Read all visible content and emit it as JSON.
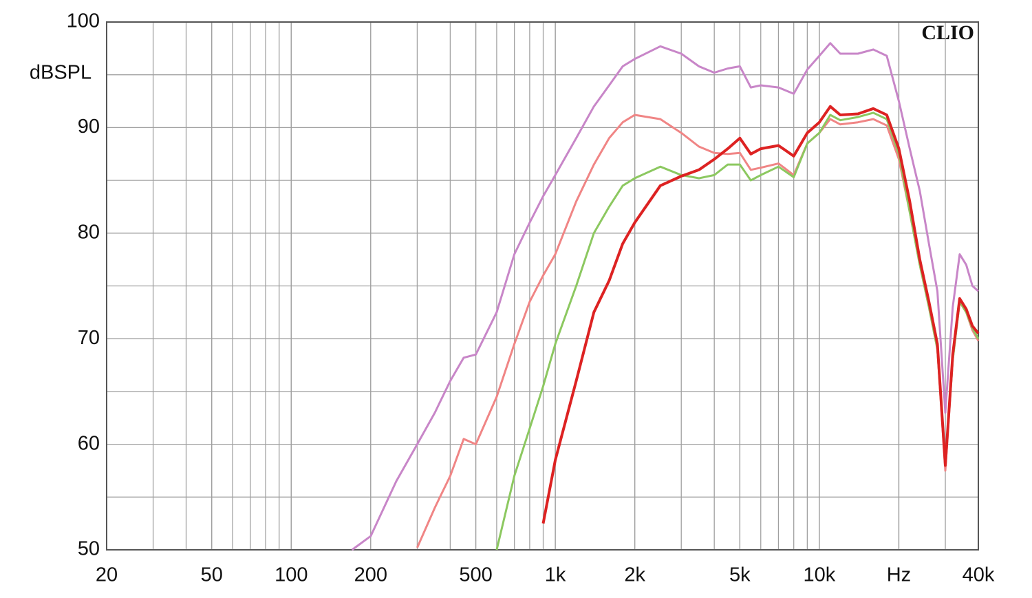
{
  "chart_data": {
    "type": "line",
    "ylabel": "dBSPL",
    "annotation": "CLIO",
    "log_x": true,
    "grid": true,
    "x": [
      170,
      200,
      250,
      300,
      350,
      400,
      450,
      500,
      600,
      700,
      800,
      900,
      1000,
      1200,
      1400,
      1600,
      1800,
      2000,
      2500,
      3000,
      3500,
      4000,
      4500,
      5000,
      5500,
      6000,
      7000,
      8000,
      9000,
      10000,
      11000,
      12000,
      14000,
      16000,
      18000,
      20000,
      22000,
      24000,
      26000,
      28000,
      30000,
      32000,
      34000,
      36000,
      38000,
      40000
    ],
    "series": [
      {
        "color": "#c886c8",
        "values": [
          50.0,
          51.3,
          56.5,
          60.0,
          63,
          66,
          68.2,
          68.5,
          72.5,
          78,
          81,
          83.5,
          85.5,
          89,
          92,
          94,
          95.8,
          96.5,
          97.7,
          97,
          95.8,
          95.2,
          95.6,
          95.8,
          93.8,
          94,
          93.8,
          93.2,
          95.5,
          96.8,
          98,
          97,
          97,
          97.4,
          96.8,
          92.5,
          88,
          84,
          79,
          74.5,
          63,
          73,
          78,
          77,
          75,
          74.5
        ]
      },
      {
        "color": "#f08585",
        "values": [
          null,
          null,
          null,
          50.2,
          54,
          57,
          60.5,
          60,
          64.5,
          69.5,
          73.5,
          76,
          78,
          83,
          86.5,
          89,
          90.5,
          91.2,
          90.8,
          89.5,
          88.2,
          87.6,
          87.5,
          87.6,
          86,
          86.2,
          86.6,
          85.5,
          88.5,
          89.5,
          90.8,
          90.3,
          90.5,
          90.8,
          90.2,
          87,
          82,
          77,
          73,
          69,
          57.5,
          68,
          73.5,
          72.5,
          70.8,
          69.8
        ]
      },
      {
        "color": "#8cc860",
        "values": [
          null,
          null,
          null,
          null,
          null,
          null,
          null,
          null,
          50,
          57,
          61.5,
          65.5,
          69.5,
          75,
          80,
          82.5,
          84.5,
          85.2,
          86.3,
          85.5,
          85.2,
          85.5,
          86.5,
          86.5,
          85,
          85.5,
          86.3,
          85.3,
          88.5,
          89.5,
          91.2,
          90.7,
          91,
          91.4,
          90.8,
          87.5,
          82,
          77,
          73,
          69,
          58,
          68,
          73.5,
          72.5,
          71,
          70
        ]
      },
      {
        "color": "#dd2222",
        "values": [
          null,
          null,
          null,
          null,
          null,
          null,
          null,
          null,
          null,
          null,
          null,
          52.5,
          58.5,
          66,
          72.5,
          75.5,
          79,
          81,
          84.5,
          85.4,
          86,
          87,
          88,
          89,
          87.5,
          88,
          88.3,
          87.3,
          89.5,
          90.5,
          92,
          91.2,
          91.3,
          91.8,
          91.2,
          88,
          83,
          77.5,
          73.5,
          69.5,
          58,
          68.5,
          73.8,
          72.8,
          71.2,
          70.5
        ]
      }
    ],
    "xlim": [
      20,
      40000
    ],
    "xticks": [
      20,
      50,
      100,
      200,
      500,
      {
        "value": 1000,
        "label": "1k"
      },
      {
        "value": 2000,
        "label": "2k"
      },
      {
        "value": 5000,
        "label": "5k"
      },
      {
        "value": 10000,
        "label": "10k"
      },
      {
        "value": 20000,
        "label": "Hz"
      },
      {
        "value": 40000,
        "label": "40k"
      }
    ],
    "ylim": [
      50,
      100
    ],
    "yticks": [
      50,
      60,
      70,
      80,
      90,
      100
    ]
  }
}
